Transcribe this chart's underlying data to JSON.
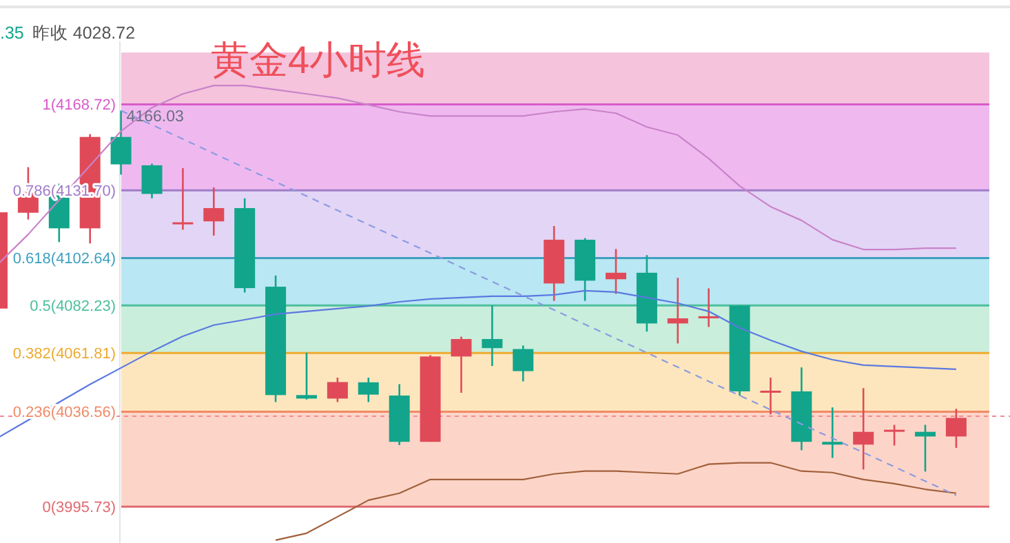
{
  "chart_data": {
    "type": "candlestick",
    "title": "黄金4小时线",
    "annotations": [
      ".35",
      "昨收 4028.72",
      {
        "text": "4166.03",
        "y": 4166.03
      }
    ],
    "categories": [
      null,
      null,
      null,
      null,
      null,
      null,
      null,
      null,
      null,
      null,
      null,
      null,
      null,
      null,
      null,
      null,
      null,
      null,
      null,
      null,
      null,
      null,
      null,
      null,
      null,
      null,
      null,
      null,
      null,
      null,
      null,
      null
    ],
    "ohlc": [
      [
        4080.9,
        4122.3,
        4080.9,
        4122.3
      ],
      [
        4122.1,
        4141.7,
        4119.2,
        4131.0
      ],
      [
        4131.0,
        4134.6,
        4109.5,
        4115.4
      ],
      [
        4115.4,
        4155.9,
        4108.9,
        4154.7
      ],
      [
        4154.7,
        4166.03,
        4138.5,
        4142.9
      ],
      [
        4142.5,
        4143.2,
        4128.3,
        4130.2
      ],
      [
        4117.5,
        4141.3,
        4114.8,
        4118.0
      ],
      [
        4118.4,
        4133.0,
        4112.3,
        4124.1
      ],
      [
        4124.1,
        4128.3,
        4087.8,
        4089.7
      ],
      [
        4090.3,
        4095.1,
        4040.7,
        4043.7
      ],
      [
        4043.7,
        4061.9,
        4041.8,
        4042.2
      ],
      [
        4042.2,
        4051.2,
        4040.7,
        4049.3
      ],
      [
        4049.2,
        4051.2,
        4040.7,
        4043.9
      ],
      [
        4043.5,
        4048.4,
        4022.2,
        4023.6
      ],
      [
        4023.6,
        4060.9,
        4023.6,
        4060.3
      ],
      [
        4060.3,
        4068.8,
        4044.7,
        4067.8
      ],
      [
        4067.8,
        4082.2,
        4056.2,
        4063.9
      ],
      [
        4063.5,
        4065.0,
        4049.6,
        4054.0
      ],
      [
        4091.7,
        4116.4,
        4084.2,
        4110.5
      ],
      [
        4110.5,
        4111.2,
        4084.2,
        4092.9
      ],
      [
        4093.5,
        4106.5,
        4087.2,
        4096.3
      ],
      [
        4096.3,
        4103.9,
        4071.0,
        4074.5
      ],
      [
        4074.5,
        4094.1,
        4065.9,
        4076.7
      ],
      [
        4077.0,
        4089.6,
        4073.0,
        4077.6
      ],
      [
        4082.2,
        4082.2,
        4043.4,
        4045.3
      ],
      [
        4045.0,
        4051.2,
        4035.4,
        4045.6
      ],
      [
        4045.3,
        4055.6,
        4020.0,
        4023.6
      ],
      [
        4023.6,
        4038.4,
        4016.7,
        4022.4
      ],
      [
        4022.4,
        4046.7,
        4011.7,
        4027.9
      ],
      [
        4028.3,
        4030.9,
        4022.0,
        4028.8
      ],
      [
        4027.9,
        4030.9,
        4010.8,
        4025.9
      ],
      [
        4025.9,
        4037.8,
        4021.0,
        4033.9
      ]
    ],
    "colors": [
      "#e04a58",
      "#e04a58",
      "#12a58b",
      "#e04a58",
      "#12a58b",
      "#12a58b",
      "#e04a58",
      "#e04a58",
      "#12a58b",
      "#12a58b",
      "#12a58b",
      "#e04a58",
      "#12a58b",
      "#12a58b",
      "#e04a58",
      "#e04a58",
      "#12a58b",
      "#12a58b",
      "#e04a58",
      "#12a58b",
      "#e04a58",
      "#12a58b",
      "#e04a58",
      "#e04a58",
      "#12a58b",
      "#e04a58",
      "#12a58b",
      "#12a58b",
      "#e04a58",
      "#e04a58",
      "#12a58b",
      "#e04a58"
    ],
    "series": [
      {
        "type": "line",
        "color": "#c983c9",
        "values": [
          4099.7,
          4112.8,
          4127.6,
          4142.4,
          4157.2,
          4167.3,
          4173.2,
          4176.8,
          4176.8,
          4175.0,
          4173.2,
          4171.4,
          4168.5,
          4165.5,
          4163.7,
          4163.7,
          4163.7,
          4163.7,
          4165.5,
          4166.7,
          4164.9,
          4159.0,
          4155.5,
          4145.4,
          4133.6,
          4124.7,
          4118.8,
          4110.5,
          4106.3,
          4106.3,
          4106.9,
          4106.9
        ]
      },
      {
        "type": "line",
        "color": "#5b79e0",
        "values": [
          4025.2,
          4032.9,
          4040.6,
          4048.3,
          4055.4,
          4062.5,
          4069.0,
          4073.8,
          4076.1,
          4078.5,
          4079.7,
          4080.9,
          4082.0,
          4083.8,
          4085.0,
          4085.6,
          4086.2,
          4086.2,
          4086.8,
          4088.6,
          4088.0,
          4085.6,
          4083.2,
          4079.7,
          4072.6,
          4067.3,
          4062.5,
          4058.9,
          4056.6,
          4056.0,
          4055.4,
          4054.8
        ]
      },
      {
        "type": "line",
        "color": "#a0603c",
        "values": [
          null,
          null,
          null,
          null,
          null,
          null,
          null,
          null,
          null,
          3981.3,
          3984.3,
          3991.4,
          3998.5,
          4001.5,
          4007.4,
          4007.4,
          4007.4,
          4007.4,
          4009.8,
          4011.0,
          4011.0,
          4010.4,
          4009.8,
          4014.0,
          4014.6,
          4014.6,
          4011.0,
          4010.4,
          4007.4,
          4005.6,
          4003.2,
          4001.5
        ]
      },
      {
        "type": "line",
        "color": "#8c9be0",
        "line_style": "dashed",
        "values": [
          null,
          null,
          null,
          null,
          4166.0,
          4159.9,
          4153.8,
          4147.6,
          4141.5,
          4135.4,
          4129.3,
          4123.1,
          4117.0,
          4110.9,
          4104.8,
          4098.6,
          4092.5,
          4086.4,
          4080.3,
          4074.1,
          4068.0,
          4061.9,
          4055.7,
          4049.6,
          4043.5,
          4037.4,
          4031.2,
          4025.1,
          4019.0,
          4012.9,
          4006.7,
          4000.6
        ]
      }
    ],
    "ylim": [
      3980.1,
      4195.8
    ],
    "bands": [
      {
        "axis": "y",
        "from": 3995.73,
        "to": 4036.56,
        "color": "#fdd5c8"
      },
      {
        "axis": "y",
        "from": 4036.56,
        "to": 4061.81,
        "color": "#fde6bd"
      },
      {
        "axis": "y",
        "from": 4061.81,
        "to": 4082.23,
        "color": "#c9eedc"
      },
      {
        "axis": "y",
        "from": 4082.23,
        "to": 4102.64,
        "color": "#b9e7f3"
      },
      {
        "axis": "y",
        "from": 4102.64,
        "to": 4131.7,
        "color": "#e3d5f5"
      },
      {
        "axis": "y",
        "from": 4131.7,
        "to": 4168.72,
        "color": "#efb9f0"
      },
      {
        "axis": "y",
        "from": 4168.72,
        "to": 4191.0,
        "color": "#f5c3dc"
      }
    ],
    "ref_lines": [
      {
        "axis": "y",
        "value": 4168.72,
        "label": "1(4168.72)",
        "color": "#d85bc9"
      },
      {
        "axis": "y",
        "value": 4131.7,
        "label": "0.786(4131.70)",
        "color": "#a07cc8"
      },
      {
        "axis": "y",
        "value": 4102.64,
        "label": "0.618(4102.64)",
        "color": "#3ea0c0"
      },
      {
        "axis": "y",
        "value": 4082.23,
        "label": "0.5(4082.23)",
        "color": "#4cbf9c"
      },
      {
        "axis": "y",
        "value": 4061.81,
        "label": "0.382(4061.81)",
        "color": "#eeaa30"
      },
      {
        "axis": "y",
        "value": 4036.56,
        "label": "0.236(4036.56)",
        "color": "#f08a66"
      },
      {
        "axis": "y",
        "value": 3995.73,
        "label": "0(3995.73)",
        "color": "#e06a70"
      },
      {
        "axis": "y",
        "value": 4034.6,
        "color": "#f08a9a",
        "line_style": "dashed"
      }
    ]
  }
}
